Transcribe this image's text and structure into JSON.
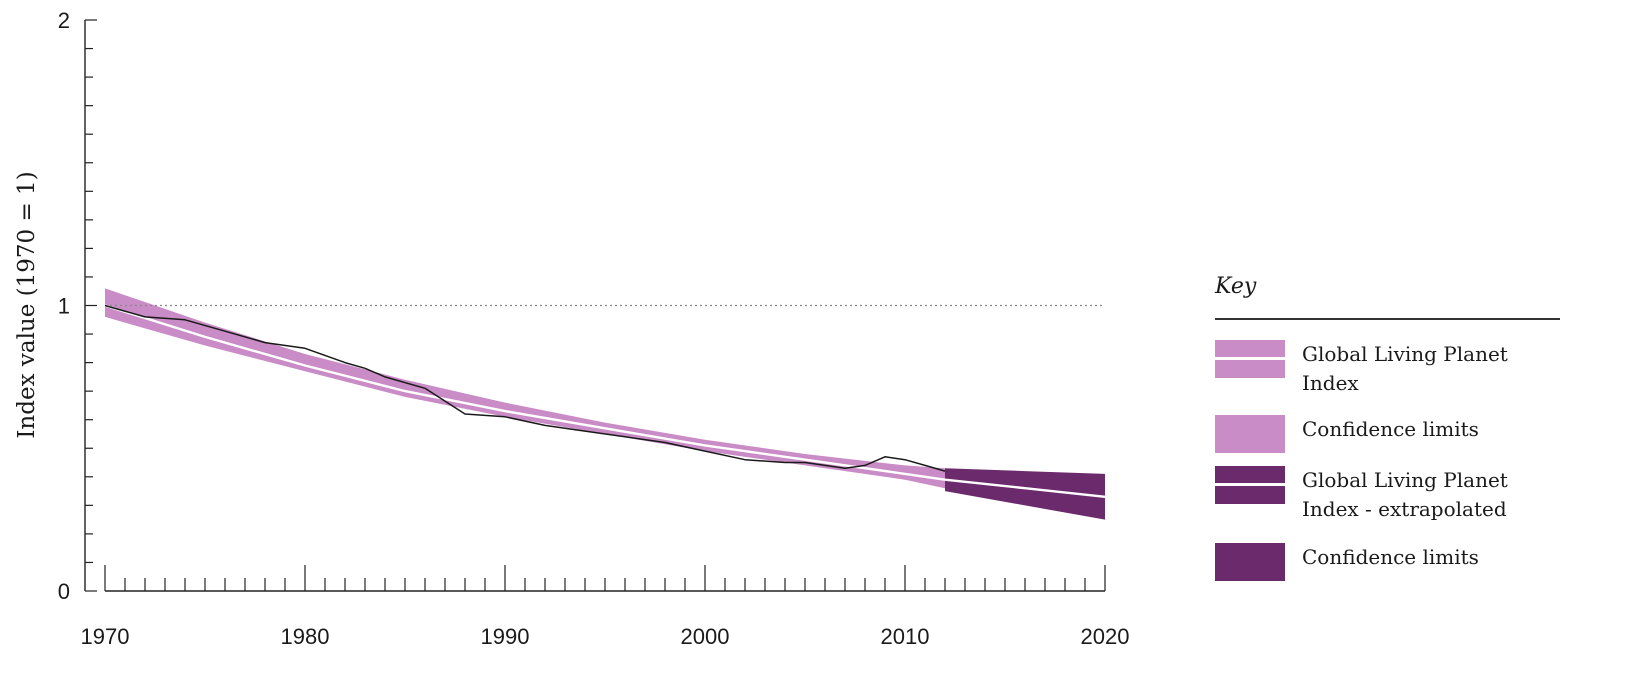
{
  "chart_data": {
    "type": "line",
    "ylabel": "Index value (1970 = 1)",
    "xlim": [
      1970,
      2020
    ],
    "ylim": [
      0,
      2
    ],
    "y_ticks": [
      {
        "value": 0,
        "label": "0"
      },
      {
        "value": 1,
        "label": "1"
      },
      {
        "value": 2,
        "label": "2"
      }
    ],
    "x_ticks": [
      {
        "value": 1970,
        "label": "1970"
      },
      {
        "value": 1980,
        "label": "1980"
      },
      {
        "value": 1990,
        "label": "1990"
      },
      {
        "value": 2000,
        "label": "2000"
      },
      {
        "value": 2010,
        "label": "2010"
      },
      {
        "value": 2020,
        "label": "2020"
      }
    ],
    "reference_line": 1,
    "series": [
      {
        "name": "Global Living Planet Index",
        "color": "#c98cc6",
        "x": [
          1970,
          1975,
          1980,
          1985,
          1990,
          1995,
          2000,
          2005,
          2010,
          2012
        ],
        "values": [
          1.0,
          0.89,
          0.79,
          0.7,
          0.63,
          0.57,
          0.51,
          0.46,
          0.41,
          0.39
        ],
        "lower": [
          0.96,
          0.86,
          0.77,
          0.68,
          0.61,
          0.55,
          0.49,
          0.44,
          0.39,
          0.36
        ],
        "upper": [
          1.06,
          0.94,
          0.83,
          0.74,
          0.66,
          0.59,
          0.53,
          0.48,
          0.44,
          0.43
        ]
      },
      {
        "name": "Global Living Planet Index - extrapolated",
        "color": "#6b2a6b",
        "x": [
          2012,
          2016,
          2020
        ],
        "values": [
          0.39,
          0.36,
          0.33
        ],
        "lower": [
          0.35,
          0.3,
          0.25
        ],
        "upper": [
          0.43,
          0.42,
          0.41
        ]
      },
      {
        "name": "",
        "color": "#1a1a1a",
        "x": [
          1970,
          1972,
          1974,
          1976,
          1978,
          1980,
          1982,
          1983,
          1984,
          1986,
          1988,
          1990,
          1992,
          1994,
          1996,
          1998,
          2000,
          2002,
          2004,
          2005,
          2006,
          2007,
          2008,
          2009,
          2010,
          2011,
          2012
        ],
        "values": [
          1.0,
          0.96,
          0.95,
          0.91,
          0.87,
          0.85,
          0.8,
          0.78,
          0.75,
          0.71,
          0.62,
          0.61,
          0.58,
          0.56,
          0.54,
          0.52,
          0.49,
          0.46,
          0.45,
          0.45,
          0.44,
          0.43,
          0.44,
          0.47,
          0.46,
          0.44,
          0.42
        ]
      }
    ]
  },
  "key": {
    "title": "Key",
    "items": [
      {
        "label": "Global Living Planet Index",
        "color": "#c98cc6",
        "midline": true
      },
      {
        "label": "Confidence limits",
        "color": "#c98cc6",
        "midline": false
      },
      {
        "label": "Global Living Planet Index - extrapolated",
        "color": "#6b2a6b",
        "midline": true
      },
      {
        "label": "Confidence limits",
        "color": "#6b2a6b",
        "midline": false
      }
    ]
  }
}
